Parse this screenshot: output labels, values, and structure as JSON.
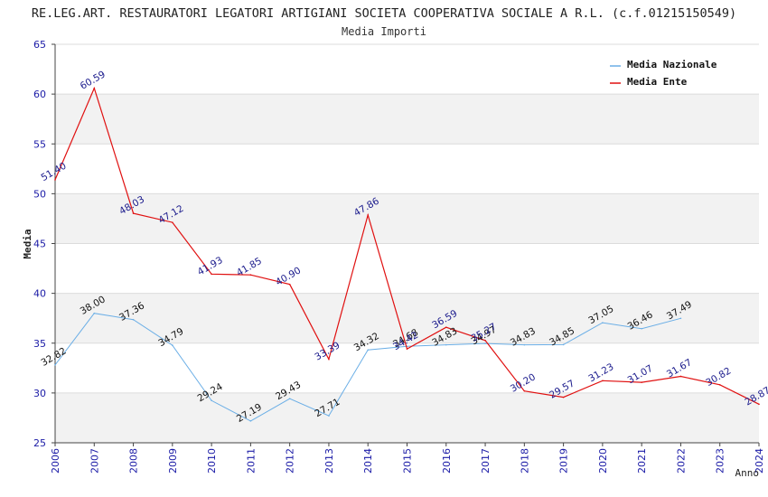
{
  "chart_data": {
    "type": "line",
    "title": "RE.LEG.ART. RESTAURATORI LEGATORI ARTIGIANI SOCIETA COOPERATIVA SOCIALE A R.L. (c.f.01215150549)",
    "subtitle": "Media Importi",
    "xlabel": "Anno",
    "ylabel": "Media",
    "ylim": [
      25,
      65
    ],
    "yticks": [
      "25",
      "30",
      "35",
      "40",
      "45",
      "50",
      "55",
      "60",
      "65"
    ],
    "x": [
      "2006",
      "2007",
      "2008",
      "2009",
      "2010",
      "2011",
      "2012",
      "2013",
      "2014",
      "2015",
      "2016",
      "2017",
      "2018",
      "2019",
      "2020",
      "2021",
      "2022",
      "2023",
      "2024"
    ],
    "legend_position": "top-right",
    "grid": true,
    "series": [
      {
        "name": "Media Nazionale",
        "color": "#6aaee6",
        "values": [
          32.82,
          38.0,
          37.36,
          34.79,
          29.24,
          27.19,
          29.43,
          27.71,
          34.32,
          34.68,
          34.83,
          34.97,
          34.83,
          34.85,
          37.05,
          36.46,
          37.49,
          null,
          null
        ],
        "labels": [
          "32.82",
          "38.00",
          "37.36",
          "34.79",
          "29.24",
          "27.19",
          "29.43",
          "27.71",
          "34.32",
          "34.68",
          "34.83",
          "34.97",
          "34.83",
          "34.85",
          "37.05",
          "36.46",
          "37.49",
          "",
          ""
        ]
      },
      {
        "name": "Media Ente",
        "color": "#e01010",
        "values": [
          51.4,
          60.59,
          48.03,
          47.12,
          41.93,
          41.85,
          40.9,
          33.39,
          47.86,
          34.42,
          36.59,
          35.27,
          30.2,
          29.57,
          31.23,
          31.07,
          31.67,
          30.82,
          28.87
        ],
        "labels": [
          "51.40",
          "60.59",
          "48.03",
          "47.12",
          "41.93",
          "41.85",
          "40.90",
          "33.39",
          "47.86",
          "34.42",
          "36.59",
          "35.27",
          "30.20",
          "29.57",
          "31.23",
          "31.07",
          "31.67",
          "30.82",
          "28.87"
        ]
      }
    ]
  }
}
